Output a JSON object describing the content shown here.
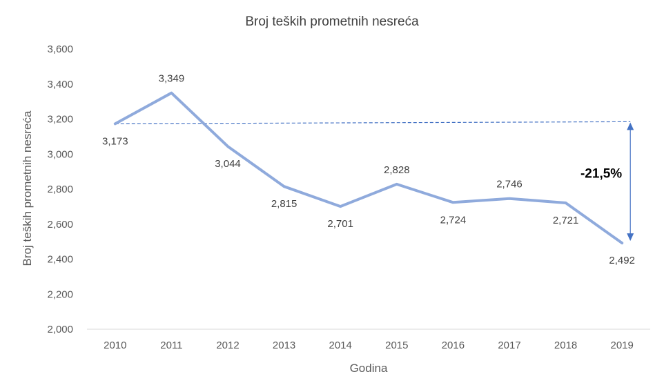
{
  "chart_data": {
    "type": "line",
    "title": "Broj teških prometnih nesreća",
    "xlabel": "Godina",
    "ylabel": "Broj teških prometnih nesreća",
    "categories": [
      "2010",
      "2011",
      "2012",
      "2013",
      "2014",
      "2015",
      "2016",
      "2017",
      "2018",
      "2019"
    ],
    "series": [
      {
        "values": [
          3173,
          3349,
          3044,
          2815,
          2701,
          2828,
          2724,
          2746,
          2721,
          2492
        ],
        "labels": [
          "3,173",
          "3,349",
          "3,044",
          "2,815",
          "2,701",
          "2,828",
          "2,724",
          "2,746",
          "2,721",
          "2,492"
        ],
        "color": "#8FAADC"
      }
    ],
    "ylim": [
      2000,
      3600
    ],
    "y_ticks": [
      2000,
      2200,
      2400,
      2600,
      2800,
      3000,
      3200,
      3400,
      3600
    ],
    "y_tick_labels": [
      "2,000",
      "2,200",
      "2,400",
      "2,600",
      "2,800",
      "3,000",
      "3,200",
      "3,400",
      "3,600"
    ],
    "grid": false,
    "legend": "none",
    "reference_line": {
      "from_value": 3173,
      "style": "dashed",
      "color": "#4472C4"
    },
    "annotation": {
      "text": "-21,5%",
      "from_value": 3173,
      "to_value": 2492
    }
  }
}
